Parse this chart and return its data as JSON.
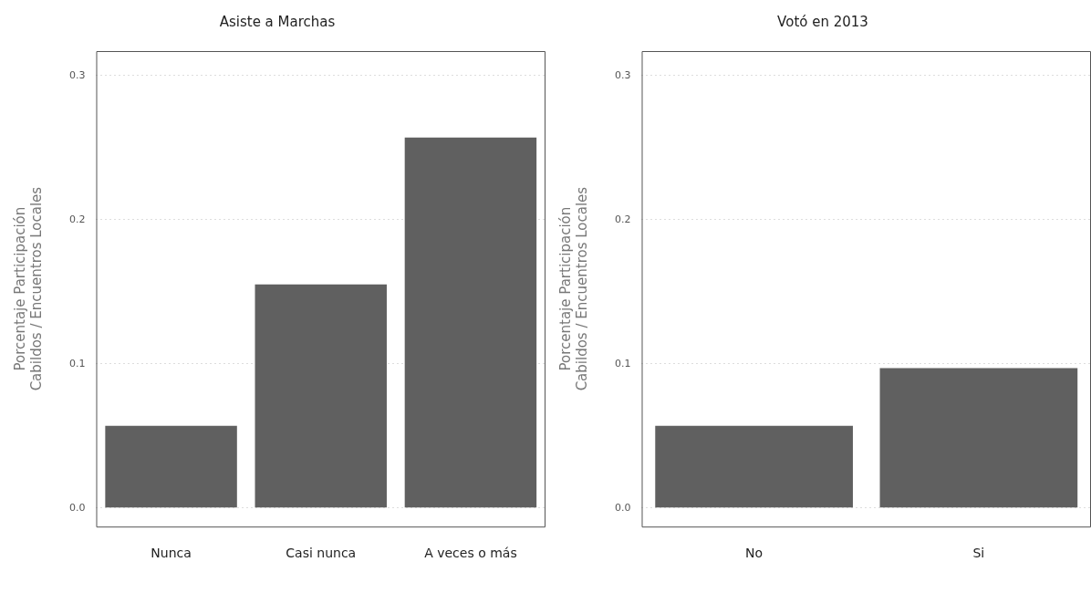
{
  "chart_data": [
    {
      "type": "bar",
      "title": "Asiste a Marchas",
      "ylabel": "Porcentaje Participación\nCabildos / Encuentros Locales",
      "categories": [
        "Nunca",
        "Casi nunca",
        "A veces o más"
      ],
      "values": [
        0.057,
        0.155,
        0.257
      ],
      "color": "#606060",
      "ylim": [
        -0.013,
        0.317
      ],
      "yticks": [
        {
          "value": 0,
          "label": "0.0"
        },
        {
          "value": 0.1,
          "label": "0.1"
        },
        {
          "value": 0.2,
          "label": "0.2"
        },
        {
          "value": 0.3,
          "label": "0.3"
        }
      ],
      "grid": "y",
      "legend": false
    },
    {
      "type": "bar",
      "title": "Votó en 2013",
      "ylabel": "Porcentaje Participación\nCabildos / Encuentros Locales",
      "categories": [
        "No",
        "Si"
      ],
      "values": [
        0.057,
        0.097
      ],
      "color": "#606060",
      "ylim": [
        -0.013,
        0.317
      ],
      "yticks": [
        {
          "value": 0,
          "label": "0.0"
        },
        {
          "value": 0.1,
          "label": "0.1"
        },
        {
          "value": 0.2,
          "label": "0.2"
        },
        {
          "value": 0.3,
          "label": "0.3"
        }
      ],
      "grid": "y",
      "legend": false
    }
  ]
}
